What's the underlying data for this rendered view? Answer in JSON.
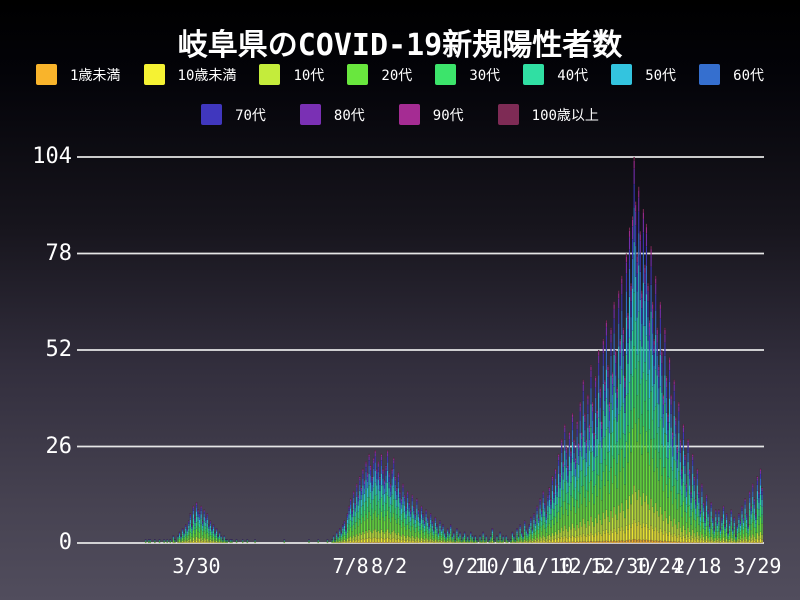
{
  "title": "岐阜県のCOVID-19新規陽性者数",
  "colors": {
    "background_top": "#000000",
    "background_bottom": "#514d5d",
    "grid": "#e6e6e6",
    "text": "#ffffff"
  },
  "chart_data": {
    "type": "bar",
    "stacked": true,
    "title": "岐阜県のCOVID-19新規陽性者数",
    "xlabel": "",
    "ylabel": "",
    "ylim": [
      0,
      104
    ],
    "y_ticks": [
      0,
      26,
      52,
      78,
      104
    ],
    "grid": "horizontal",
    "legend_position": "top",
    "x_tick_labels": [
      {
        "label": "3/30",
        "day": 73
      },
      {
        "label": "7/8",
        "day": 173
      },
      {
        "label": "8/2",
        "day": 198
      },
      {
        "label": "9/21",
        "day": 248
      },
      {
        "label": "10/16",
        "day": 273
      },
      {
        "label": "11/10",
        "day": 298
      },
      {
        "label": "12/5",
        "day": 323
      },
      {
        "label": "12/30",
        "day": 348
      },
      {
        "label": "1/24",
        "day": 373
      },
      {
        "label": "2/18",
        "day": 398
      },
      {
        "label": "3/29",
        "day": 437
      }
    ],
    "groups": [
      {
        "name": "1歳未満",
        "color": "#F9B42B",
        "share": 0.01
      },
      {
        "name": "10歳未満",
        "color": "#F5F233",
        "share": 0.05
      },
      {
        "name": "10代",
        "color": "#C4EC3B",
        "share": 0.09
      },
      {
        "name": "20代",
        "color": "#69E73E",
        "share": 0.2
      },
      {
        "name": "30代",
        "color": "#3CE46B",
        "share": 0.16
      },
      {
        "name": "40代",
        "color": "#30DFA3",
        "share": 0.14
      },
      {
        "name": "50代",
        "color": "#33C4DF",
        "share": 0.13
      },
      {
        "name": "60代",
        "color": "#356FCF",
        "share": 0.09
      },
      {
        "name": "70代",
        "color": "#4037BE",
        "share": 0.06
      },
      {
        "name": "80代",
        "color": "#7A30B4",
        "share": 0.04
      },
      {
        "name": "90代",
        "color": "#A52C93",
        "share": 0.02
      },
      {
        "name": "100歳以上",
        "color": "#7E2B55",
        "share": 0.01
      }
    ],
    "daily_totals": [
      0,
      0,
      0,
      0,
      0,
      0,
      0,
      0,
      0,
      0,
      0,
      0,
      0,
      0,
      0,
      0,
      0,
      0,
      0,
      0,
      0,
      0,
      0,
      0,
      0,
      0,
      0,
      0,
      0,
      0,
      0,
      0,
      0,
      0,
      0,
      0,
      0,
      0,
      0,
      0,
      1,
      0,
      1,
      1,
      0,
      0,
      1,
      0,
      0,
      1,
      0,
      0,
      1,
      0,
      1,
      0,
      1,
      0,
      2,
      1,
      0,
      2,
      3,
      2,
      4,
      3,
      5,
      4,
      6,
      8,
      5,
      10,
      7,
      11,
      9,
      8,
      10,
      6,
      9,
      7,
      8,
      5,
      6,
      4,
      5,
      3,
      4,
      2,
      3,
      2,
      1,
      2,
      1,
      1,
      0,
      1,
      1,
      0,
      0,
      1,
      0,
      0,
      0,
      1,
      0,
      0,
      1,
      0,
      0,
      0,
      0,
      1,
      0,
      0,
      0,
      0,
      0,
      0,
      0,
      0,
      0,
      0,
      0,
      0,
      0,
      0,
      0,
      0,
      0,
      0,
      1,
      0,
      0,
      0,
      0,
      0,
      0,
      0,
      0,
      0,
      0,
      0,
      0,
      0,
      0,
      0,
      1,
      0,
      0,
      0,
      0,
      0,
      1,
      0,
      0,
      0,
      0,
      0,
      1,
      0,
      0,
      1,
      2,
      1,
      3,
      2,
      4,
      3,
      5,
      6,
      4,
      8,
      10,
      12,
      9,
      14,
      11,
      16,
      13,
      18,
      15,
      20,
      17,
      22,
      19,
      24,
      21,
      18,
      23,
      25,
      20,
      22,
      18,
      24,
      20,
      17,
      21,
      25,
      19,
      16,
      20,
      23,
      18,
      15,
      19,
      14,
      12,
      16,
      13,
      10,
      14,
      11,
      9,
      13,
      10,
      8,
      12,
      9,
      7,
      10,
      8,
      6,
      9,
      7,
      5,
      8,
      6,
      4,
      7,
      5,
      3,
      6,
      4,
      5,
      3,
      2,
      4,
      3,
      5,
      2,
      3,
      1,
      4,
      2,
      3,
      1,
      2,
      3,
      1,
      2,
      1,
      3,
      2,
      1,
      2,
      1,
      0,
      2,
      1,
      3,
      1,
      2,
      0,
      1,
      2,
      4,
      1,
      0,
      2,
      1,
      3,
      1,
      2,
      0,
      2,
      1,
      0,
      1,
      3,
      2,
      1,
      4,
      2,
      5,
      3,
      2,
      6,
      4,
      3,
      5,
      7,
      4,
      8,
      6,
      10,
      7,
      12,
      9,
      14,
      11,
      8,
      13,
      15,
      12,
      18,
      14,
      20,
      16,
      24,
      19,
      28,
      22,
      32,
      26,
      21,
      30,
      25,
      35,
      28,
      23,
      33,
      27,
      38,
      30,
      44,
      35,
      28,
      40,
      32,
      48,
      38,
      30,
      45,
      36,
      52,
      42,
      33,
      55,
      44,
      60,
      48,
      38,
      58,
      46,
      65,
      52,
      42,
      68,
      55,
      72,
      58,
      45,
      78,
      62,
      85,
      70,
      88,
      104,
      92,
      78,
      96,
      84,
      68,
      90,
      75,
      86,
      70,
      60,
      80,
      65,
      55,
      72,
      58,
      48,
      65,
      52,
      40,
      58,
      45,
      35,
      50,
      40,
      30,
      44,
      34,
      26,
      38,
      28,
      20,
      32,
      24,
      16,
      28,
      20,
      14,
      24,
      18,
      12,
      20,
      14,
      9,
      16,
      11,
      7,
      13,
      9,
      5,
      11,
      7,
      4,
      9,
      6,
      9,
      4,
      7,
      10,
      5,
      8,
      3,
      6,
      9,
      4,
      7,
      2,
      5,
      8,
      6,
      10,
      7,
      12,
      8,
      5,
      14,
      10,
      16,
      12,
      8,
      18,
      14,
      20,
      15
    ]
  }
}
